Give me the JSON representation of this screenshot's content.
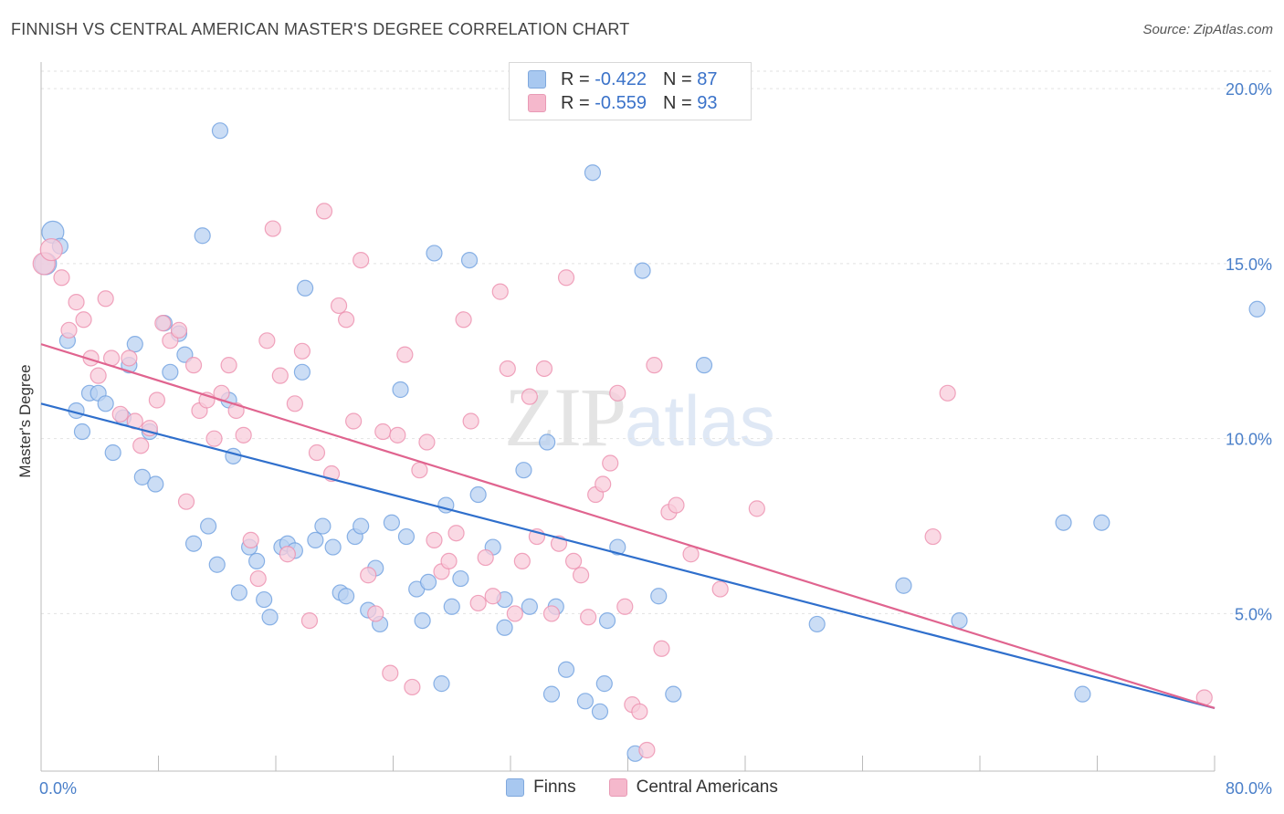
{
  "title": "FINNISH VS CENTRAL AMERICAN MASTER'S DEGREE CORRELATION CHART",
  "source": "Source: ZipAtlas.com",
  "watermark": {
    "zip": "ZIP",
    "atlas": "atlas"
  },
  "legend_top": [
    {
      "r_label": "R = ",
      "r_value": "-0.422",
      "n_label": "N = ",
      "n_value": "87",
      "color": "#a8c8f0"
    },
    {
      "r_label": "R = ",
      "r_value": "-0.559",
      "n_label": "N = ",
      "n_value": "93",
      "color": "#f5b8cc"
    }
  ],
  "legend_bottom": [
    {
      "label": "Finns",
      "color": "#a8c8f0"
    },
    {
      "label": "Central Americans",
      "color": "#f5b8cc"
    }
  ],
  "chart_data": {
    "type": "scatter",
    "title": "FINNISH VS CENTRAL AMERICAN MASTER'S DEGREE CORRELATION CHART",
    "xlabel": "",
    "ylabel": "Master's Degree",
    "xlim": [
      0,
      80
    ],
    "ylim": [
      0.5,
      20.5
    ],
    "x_tick_labels": [
      "0.0%",
      "80.0%"
    ],
    "y_ticks": [
      5,
      10,
      15,
      20
    ],
    "y_tick_labels": [
      "5.0%",
      "10.0%",
      "15.0%",
      "20.0%"
    ],
    "grid": true,
    "legend_position": "top-center",
    "series": [
      {
        "name": "Finns",
        "color": "#6fa0e0",
        "fill": "#b9d2f2",
        "trend": {
          "x": [
            0,
            80
          ],
          "y": [
            11.0,
            2.3
          ],
          "color": "#2f6fcc"
        },
        "points": [
          [
            0.8,
            15.9
          ],
          [
            1.3,
            15.5
          ],
          [
            1.8,
            12.8
          ],
          [
            2.4,
            10.8
          ],
          [
            2.8,
            10.2
          ],
          [
            3.3,
            11.3
          ],
          [
            3.9,
            11.3
          ],
          [
            4.4,
            11.0
          ],
          [
            4.9,
            9.6
          ],
          [
            5.6,
            10.6
          ],
          [
            6.0,
            12.1
          ],
          [
            6.4,
            12.7
          ],
          [
            6.9,
            8.9
          ],
          [
            7.4,
            10.2
          ],
          [
            7.8,
            8.7
          ],
          [
            8.4,
            13.3
          ],
          [
            8.8,
            11.9
          ],
          [
            9.4,
            13.0
          ],
          [
            9.8,
            12.4
          ],
          [
            10.4,
            7.0
          ],
          [
            11.0,
            15.8
          ],
          [
            11.4,
            7.5
          ],
          [
            12.0,
            6.4
          ],
          [
            12.2,
            18.8
          ],
          [
            12.8,
            11.1
          ],
          [
            13.1,
            9.5
          ],
          [
            13.5,
            5.6
          ],
          [
            14.2,
            6.9
          ],
          [
            14.7,
            6.5
          ],
          [
            15.2,
            5.4
          ],
          [
            15.6,
            4.9
          ],
          [
            16.4,
            6.9
          ],
          [
            16.8,
            7.0
          ],
          [
            17.3,
            6.8
          ],
          [
            17.8,
            11.9
          ],
          [
            18.0,
            14.3
          ],
          [
            18.7,
            7.1
          ],
          [
            19.2,
            7.5
          ],
          [
            19.9,
            6.9
          ],
          [
            20.4,
            5.6
          ],
          [
            20.8,
            5.5
          ],
          [
            21.4,
            7.2
          ],
          [
            21.8,
            7.5
          ],
          [
            22.3,
            5.1
          ],
          [
            22.8,
            6.3
          ],
          [
            23.1,
            4.7
          ],
          [
            23.9,
            7.6
          ],
          [
            24.5,
            11.4
          ],
          [
            24.9,
            7.2
          ],
          [
            25.6,
            5.7
          ],
          [
            26.0,
            4.8
          ],
          [
            26.4,
            5.9
          ],
          [
            26.8,
            15.3
          ],
          [
            27.3,
            3.0
          ],
          [
            27.6,
            8.1
          ],
          [
            28.0,
            5.2
          ],
          [
            28.6,
            6.0
          ],
          [
            29.2,
            15.1
          ],
          [
            29.8,
            8.4
          ],
          [
            30.8,
            6.9
          ],
          [
            31.6,
            4.6
          ],
          [
            31.6,
            5.4
          ],
          [
            32.9,
            9.1
          ],
          [
            33.3,
            5.2
          ],
          [
            34.5,
            9.9
          ],
          [
            34.8,
            2.7
          ],
          [
            35.1,
            5.2
          ],
          [
            35.8,
            3.4
          ],
          [
            37.1,
            2.5
          ],
          [
            37.6,
            17.6
          ],
          [
            38.1,
            2.2
          ],
          [
            38.4,
            3.0
          ],
          [
            38.6,
            4.8
          ],
          [
            39.3,
            6.9
          ],
          [
            40.5,
            1.0
          ],
          [
            41.0,
            14.8
          ],
          [
            42.1,
            5.5
          ],
          [
            43.1,
            2.7
          ],
          [
            45.2,
            12.1
          ],
          [
            52.9,
            4.7
          ],
          [
            58.8,
            5.8
          ],
          [
            62.6,
            4.8
          ],
          [
            69.7,
            7.6
          ],
          [
            71.0,
            2.7
          ],
          [
            72.3,
            7.6
          ],
          [
            82.9,
            13.7
          ],
          [
            0.3,
            15.0
          ]
        ]
      },
      {
        "name": "Central Americans",
        "color": "#ec8fae",
        "fill": "#f8ccdb",
        "trend": {
          "x": [
            0,
            80
          ],
          "y": [
            12.7,
            2.3
          ],
          "color": "#e0648f"
        },
        "points": [
          [
            0.2,
            15.0
          ],
          [
            0.7,
            15.4
          ],
          [
            1.4,
            14.6
          ],
          [
            1.9,
            13.1
          ],
          [
            2.4,
            13.9
          ],
          [
            2.9,
            13.4
          ],
          [
            3.4,
            12.3
          ],
          [
            3.9,
            11.8
          ],
          [
            4.4,
            14.0
          ],
          [
            4.8,
            12.3
          ],
          [
            5.4,
            10.7
          ],
          [
            6.0,
            12.3
          ],
          [
            6.4,
            10.5
          ],
          [
            6.8,
            9.8
          ],
          [
            7.4,
            10.3
          ],
          [
            7.9,
            11.1
          ],
          [
            8.3,
            13.3
          ],
          [
            8.8,
            12.8
          ],
          [
            9.4,
            13.1
          ],
          [
            9.9,
            8.2
          ],
          [
            10.4,
            12.1
          ],
          [
            10.8,
            10.8
          ],
          [
            11.3,
            11.1
          ],
          [
            11.8,
            10.0
          ],
          [
            12.3,
            11.3
          ],
          [
            12.8,
            12.1
          ],
          [
            13.3,
            10.8
          ],
          [
            13.8,
            10.1
          ],
          [
            14.3,
            7.1
          ],
          [
            14.8,
            6.0
          ],
          [
            15.4,
            12.8
          ],
          [
            15.8,
            16.0
          ],
          [
            16.3,
            11.8
          ],
          [
            16.8,
            6.7
          ],
          [
            17.3,
            11.0
          ],
          [
            17.8,
            12.5
          ],
          [
            18.3,
            4.8
          ],
          [
            18.8,
            9.6
          ],
          [
            19.3,
            16.5
          ],
          [
            19.8,
            9.0
          ],
          [
            20.3,
            13.8
          ],
          [
            20.8,
            13.4
          ],
          [
            21.3,
            10.5
          ],
          [
            21.8,
            15.1
          ],
          [
            22.3,
            6.1
          ],
          [
            22.8,
            5.0
          ],
          [
            23.3,
            10.2
          ],
          [
            23.8,
            3.3
          ],
          [
            24.3,
            10.1
          ],
          [
            24.8,
            12.4
          ],
          [
            25.3,
            2.9
          ],
          [
            25.8,
            9.1
          ],
          [
            26.3,
            9.9
          ],
          [
            26.8,
            7.1
          ],
          [
            27.3,
            6.2
          ],
          [
            27.8,
            6.5
          ],
          [
            28.3,
            7.3
          ],
          [
            28.8,
            13.4
          ],
          [
            29.3,
            10.5
          ],
          [
            29.8,
            5.3
          ],
          [
            30.3,
            6.6
          ],
          [
            30.8,
            5.5
          ],
          [
            31.3,
            14.2
          ],
          [
            31.8,
            12.0
          ],
          [
            32.3,
            5.0
          ],
          [
            32.8,
            6.5
          ],
          [
            33.3,
            11.2
          ],
          [
            33.8,
            7.2
          ],
          [
            34.3,
            12.0
          ],
          [
            34.8,
            5.0
          ],
          [
            35.3,
            7.0
          ],
          [
            35.8,
            14.6
          ],
          [
            36.3,
            6.5
          ],
          [
            36.8,
            6.1
          ],
          [
            37.3,
            4.9
          ],
          [
            37.8,
            8.4
          ],
          [
            38.3,
            8.7
          ],
          [
            38.8,
            9.3
          ],
          [
            39.3,
            11.3
          ],
          [
            39.8,
            5.2
          ],
          [
            40.3,
            2.4
          ],
          [
            40.8,
            2.2
          ],
          [
            41.3,
            1.1
          ],
          [
            41.8,
            12.1
          ],
          [
            42.3,
            4.0
          ],
          [
            42.8,
            7.9
          ],
          [
            43.3,
            8.1
          ],
          [
            44.3,
            6.7
          ],
          [
            46.3,
            5.7
          ],
          [
            48.8,
            8.0
          ],
          [
            60.8,
            7.2
          ],
          [
            61.8,
            11.3
          ],
          [
            79.3,
            2.6
          ]
        ]
      }
    ]
  }
}
